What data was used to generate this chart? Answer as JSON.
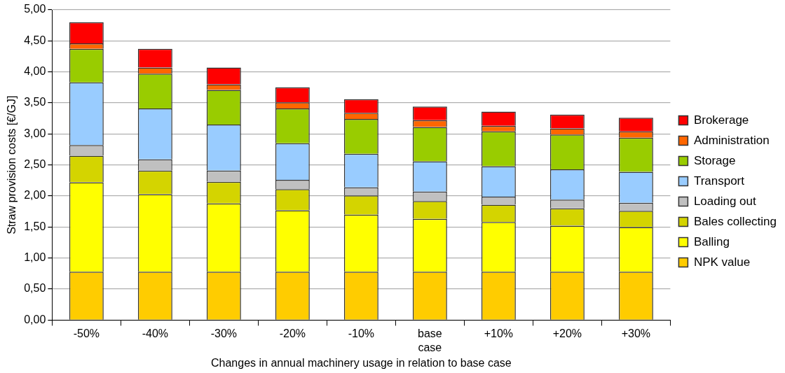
{
  "chart_data": {
    "type": "bar",
    "stacked": true,
    "xlabel": "Changes in annual machinery usage in relation to base case",
    "ylabel": "Straw provision costs [€/GJ]",
    "categories": [
      "-50%",
      "-40%",
      "-30%",
      "-20%",
      "-10%",
      "base case",
      "+10%",
      "+20%",
      "+30%"
    ],
    "series": [
      {
        "name": "NPK value",
        "color": "#ffcc00",
        "values": [
          0.78,
          0.78,
          0.78,
          0.78,
          0.78,
          0.78,
          0.78,
          0.78,
          0.78
        ]
      },
      {
        "name": "Balling",
        "color": "#ffff00",
        "values": [
          1.44,
          1.25,
          1.1,
          0.99,
          0.92,
          0.85,
          0.8,
          0.74,
          0.72
        ]
      },
      {
        "name": "Bales collecting",
        "color": "#d4d400",
        "values": [
          0.43,
          0.38,
          0.35,
          0.34,
          0.31,
          0.29,
          0.28,
          0.28,
          0.26
        ]
      },
      {
        "name": "Loading out",
        "color": "#c0c0c0",
        "values": [
          0.17,
          0.18,
          0.18,
          0.15,
          0.13,
          0.15,
          0.13,
          0.14,
          0.13
        ]
      },
      {
        "name": "Transport",
        "color": "#99ccff",
        "values": [
          1.01,
          0.82,
          0.74,
          0.59,
          0.54,
          0.49,
          0.49,
          0.49,
          0.5
        ]
      },
      {
        "name": "Storage",
        "color": "#99cc00",
        "values": [
          0.54,
          0.56,
          0.56,
          0.56,
          0.56,
          0.55,
          0.56,
          0.56,
          0.55
        ]
      },
      {
        "name": "Administration",
        "color": "#ff6600",
        "values": [
          0.09,
          0.1,
          0.09,
          0.1,
          0.1,
          0.11,
          0.09,
          0.1,
          0.1
        ]
      },
      {
        "name": "Brokerage",
        "color": "#ff0000",
        "values": [
          0.34,
          0.3,
          0.27,
          0.24,
          0.22,
          0.22,
          0.23,
          0.22,
          0.22
        ]
      }
    ],
    "ylim": [
      0,
      5
    ],
    "yticks": [
      {
        "value": 0,
        "label": "0,00"
      },
      {
        "value": 0.5,
        "label": "0,50"
      },
      {
        "value": 1,
        "label": "1,00"
      },
      {
        "value": 1.5,
        "label": "1,50"
      },
      {
        "value": 2,
        "label": "2,00"
      },
      {
        "value": 2.5,
        "label": "2,50"
      },
      {
        "value": 3,
        "label": "3,00"
      },
      {
        "value": 3.5,
        "label": "3,50"
      },
      {
        "value": 4,
        "label": "4,00"
      },
      {
        "value": 4.5,
        "label": "4,50"
      },
      {
        "value": 5,
        "label": "5,00"
      }
    ],
    "grid": "y",
    "legend": "right"
  }
}
